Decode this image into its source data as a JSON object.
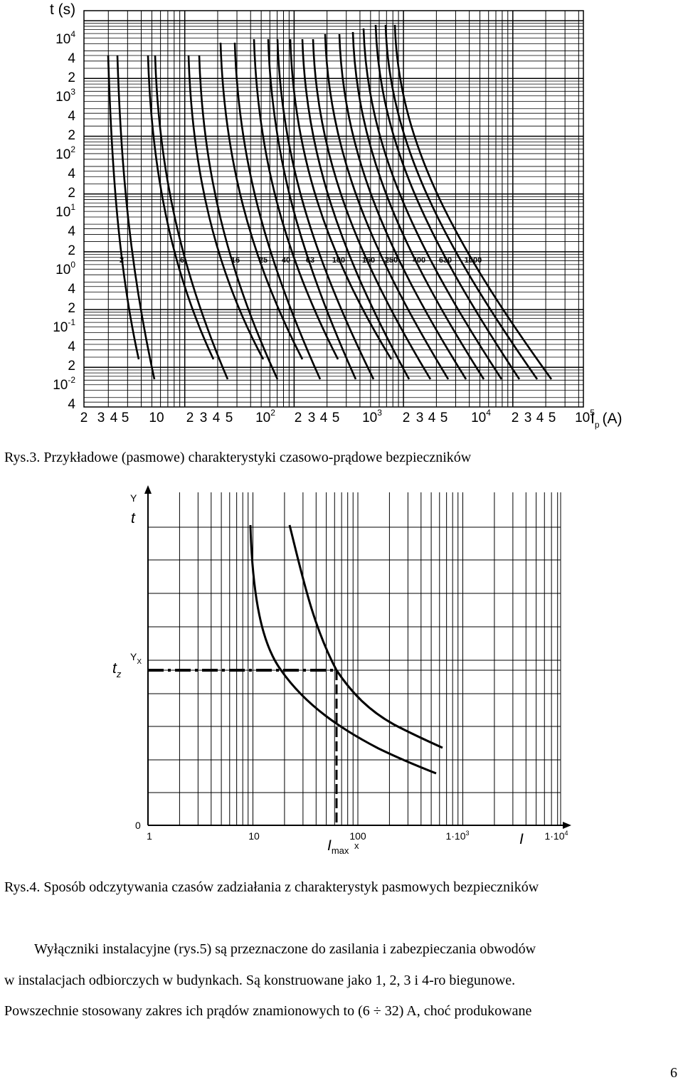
{
  "figure1": {
    "y_title": "t (s)",
    "x_title_I": "I",
    "x_title_p": "p",
    "x_title_unit": "(A)",
    "y_ticks": [
      {
        "v": "4",
        "s": ""
      },
      {
        "v": "10",
        "s": "-2"
      },
      {
        "v": "2",
        "s": ""
      },
      {
        "v": "4",
        "s": ""
      },
      {
        "v": "10",
        "s": "-1"
      },
      {
        "v": "2",
        "s": ""
      },
      {
        "v": "4",
        "s": ""
      },
      {
        "v": "10",
        "s": "0"
      },
      {
        "v": "2",
        "s": ""
      },
      {
        "v": "4",
        "s": ""
      },
      {
        "v": "10",
        "s": "1"
      },
      {
        "v": "2",
        "s": ""
      },
      {
        "v": "4",
        "s": ""
      },
      {
        "v": "10",
        "s": "2"
      },
      {
        "v": "2",
        "s": ""
      },
      {
        "v": "4",
        "s": ""
      },
      {
        "v": "10",
        "s": "3"
      },
      {
        "v": "2",
        "s": ""
      },
      {
        "v": "4",
        "s": ""
      },
      {
        "v": "10",
        "s": "4"
      }
    ],
    "x_ticks": [
      {
        "v": "2",
        "s": ""
      },
      {
        "v": "3",
        "s": ""
      },
      {
        "v": "4",
        "s": ""
      },
      {
        "v": "5",
        "s": ""
      },
      {
        "v": "10",
        "s": ""
      },
      {
        "v": "2",
        "s": ""
      },
      {
        "v": "3",
        "s": ""
      },
      {
        "v": "4",
        "s": ""
      },
      {
        "v": "5",
        "s": ""
      },
      {
        "v": "10",
        "s": "2"
      },
      {
        "v": "2",
        "s": ""
      },
      {
        "v": "3",
        "s": ""
      },
      {
        "v": "4",
        "s": ""
      },
      {
        "v": "5",
        "s": ""
      },
      {
        "v": "10",
        "s": "3"
      },
      {
        "v": "2",
        "s": ""
      },
      {
        "v": "3",
        "s": ""
      },
      {
        "v": "4",
        "s": ""
      },
      {
        "v": "5",
        "s": ""
      },
      {
        "v": "10",
        "s": "4"
      },
      {
        "v": "2",
        "s": ""
      },
      {
        "v": "3",
        "s": ""
      },
      {
        "v": "4",
        "s": ""
      },
      {
        "v": "5",
        "s": ""
      },
      {
        "v": "10",
        "s": "5"
      }
    ],
    "curve_labels": [
      "2",
      "6",
      "16",
      "25",
      "40",
      "63",
      "100",
      "160",
      "250",
      "400",
      "630",
      "1000"
    ]
  },
  "figure2": {
    "y_label_Y": "Y",
    "y_label_t": "t",
    "tz_t": "t",
    "tz_sub": "z",
    "yx_Y": "Y",
    "yx_sub": "X",
    "zero": "0",
    "x_ticks": [
      {
        "v": "1",
        "s": ""
      },
      {
        "v": "10",
        "s": ""
      },
      {
        "v": "100",
        "s": ""
      },
      {
        "v": "1·10",
        "s": "3"
      },
      {
        "v": "1·10",
        "s": "4"
      }
    ],
    "x_under_100": "x",
    "imax_I": "I",
    "imax_sub": "max",
    "x_axis_I": "I"
  },
  "caption1": "Rys.3. Przykładowe (pasmowe) charakterystyki czasowo-prądowe bezpieczników",
  "caption2": "Rys.4. Sposób odczytywania czasów zadziałania z charakterystyk pasmowych bezpieczników",
  "paragraph": {
    "line1": "Wyłączniki instalacyjne (rys.5) są przeznaczone do zasilania i zabezpieczania obwodów",
    "line2": "w instalacjach odbiorczych w budynkach. Są konstruowane jako 1, 2, 3 i 4-ro biegunowe.",
    "line3": "Powszechnie stosowany zakres ich prądów znamionowych to (6 ÷ 32) A, choć produkowane"
  },
  "page_number": "6"
}
